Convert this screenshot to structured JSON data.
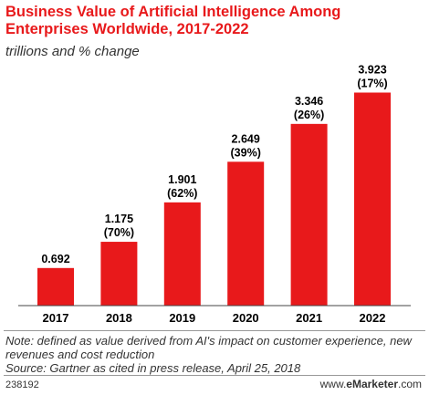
{
  "chart_data": {
    "type": "bar",
    "title": "Business Value of Artificial Intelligence Among Enterprises Worldwide, 2017-2022",
    "subtitle": "trillions and % change",
    "categories": [
      "2017",
      "2018",
      "2019",
      "2020",
      "2021",
      "2022"
    ],
    "values": [
      0.692,
      1.175,
      1.901,
      2.649,
      3.346,
      3.923
    ],
    "value_labels": [
      "0.692",
      "1.175",
      "1.901",
      "2.649",
      "3.346",
      "3.923"
    ],
    "change_labels": [
      "",
      "(70%)",
      "(62%)",
      "(39%)",
      "(26%)",
      "(17%)"
    ],
    "ylim": [
      0,
      4.2
    ],
    "grid": false,
    "bar_color": "#e8191b"
  },
  "footer": {
    "note": "Note: defined as value derived from AI's impact on customer experience, new revenues and cost reduction",
    "source": "Source: Gartner as cited in press release, April 25, 2018",
    "chart_id": "238192",
    "brand_prefix": "www.",
    "brand_name": "eMarketer",
    "brand_suffix": ".com"
  }
}
